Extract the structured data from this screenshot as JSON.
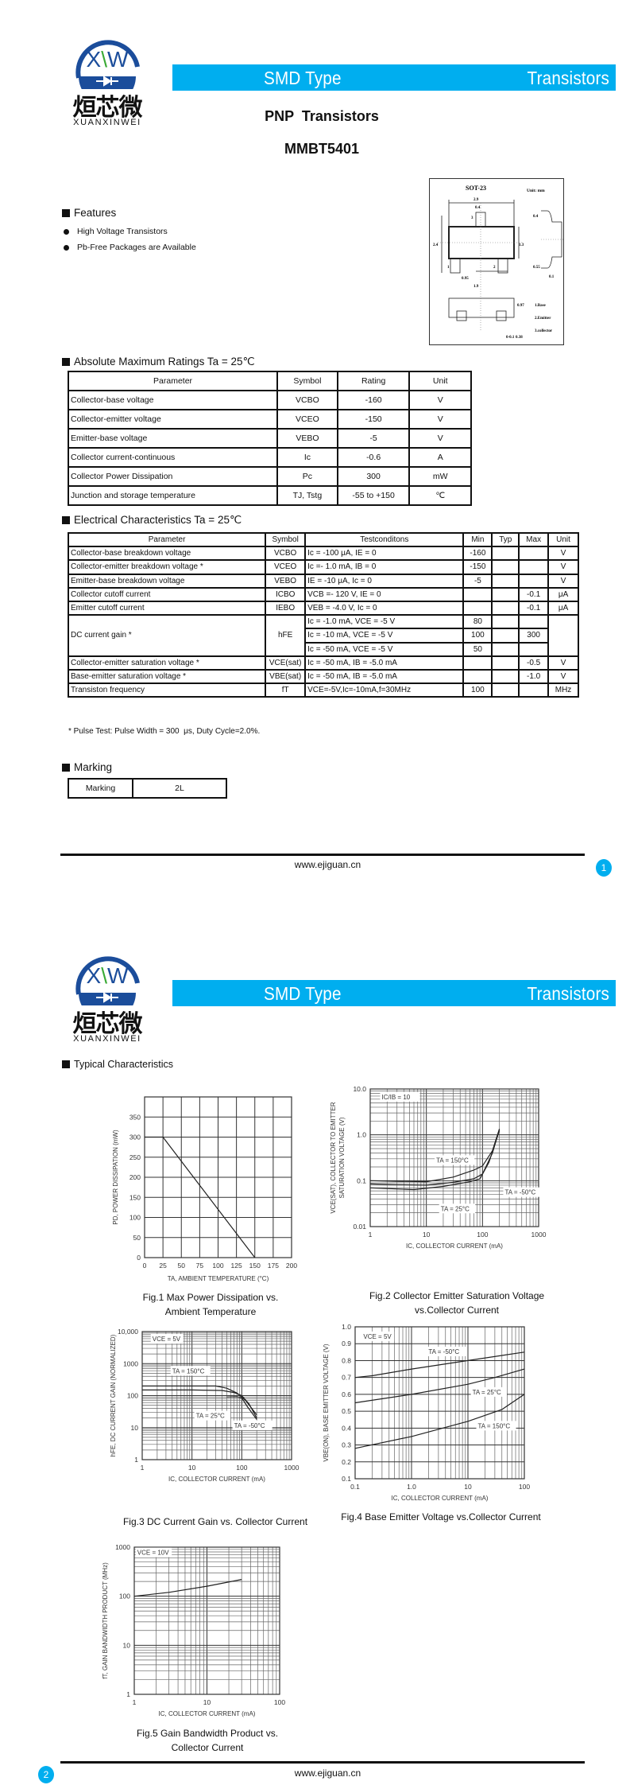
{
  "logo": {
    "mark": "XW",
    "cn": "烜芯微",
    "en": "XUANXINWEI"
  },
  "banner": {
    "left": "SMD Type",
    "right": "Transistors"
  },
  "colors": {
    "accent": "#00aeef",
    "text": "#111111"
  },
  "page1": {
    "title": "PNP  Transistors",
    "part": "MMBT5401",
    "features": {
      "heading": "Features",
      "items": [
        "High Voltage Transistors",
        "Pb-Free Packages are Available"
      ]
    },
    "package": {
      "name": "SOT-23",
      "unit": "Unit: mm",
      "dims": [
        "2.9",
        "0.4",
        "2.4",
        "1.3",
        "0.95",
        "1.9",
        "0.4",
        "0.55",
        "0.1",
        "0.97",
        "0-0.1",
        "0.38"
      ],
      "pins": [
        "1",
        "2",
        "3"
      ],
      "legend": [
        "1.Base",
        "2.Emitter",
        "3.collector"
      ]
    },
    "abs_max": {
      "heading": "Absolute Maximum Ratings Ta = 25℃",
      "columns": [
        "Parameter",
        "Symbol",
        "Rating",
        "Unit"
      ],
      "rows": [
        [
          "Collector-base voltage",
          "VCBO",
          "-160",
          "V"
        ],
        [
          "Collector-emitter voltage",
          "VCEO",
          "-150",
          "V"
        ],
        [
          "Emitter-base voltage",
          "VEBO",
          "-5",
          "V"
        ],
        [
          "Collector current-continuous",
          "Ic",
          "-0.6",
          "A"
        ],
        [
          "Collector Power Dissipation",
          "Pc",
          "300",
          "mW"
        ],
        [
          "Junction and storage temperature",
          "TJ, Tstg",
          "-55 to +150",
          "℃"
        ]
      ]
    },
    "elec": {
      "heading": "Electrical Characteristics Ta = 25℃",
      "columns": [
        "Parameter",
        "Symbol",
        "Testconditons",
        "Min",
        "Typ",
        "Max",
        "Unit"
      ],
      "rows": [
        {
          "param": "Collector-base breakdown voltage",
          "symbol": "VCBO",
          "cond": "Ic = -100  μA, IE = 0",
          "min": "-160",
          "typ": "",
          "max": "",
          "unit": "V"
        },
        {
          "param": "Collector-emitter breakdown voltage *",
          "symbol": "VCEO",
          "cond": "Ic =- 1.0 mA, IB = 0",
          "min": "-150",
          "typ": "",
          "max": "",
          "unit": "V"
        },
        {
          "param": "Emitter-base breakdown voltage",
          "symbol": "VEBO",
          "cond": "IE = -10  μA, Ic = 0",
          "min": "-5",
          "typ": "",
          "max": "",
          "unit": "V"
        },
        {
          "param": "Collector cutoff current",
          "symbol": "ICBO",
          "cond": "VCB =- 120 V, IE = 0",
          "min": "",
          "typ": "",
          "max": "-0.1",
          "unit": "μA"
        },
        {
          "param": "Emitter cutoff current",
          "symbol": "IEBO",
          "cond": "VEB = -4.0 V, Ic = 0",
          "min": "",
          "typ": "",
          "max": "-0.1",
          "unit": "μA"
        },
        {
          "param": "DC current gain *",
          "symbol": "hFE",
          "unit": "",
          "sub": [
            {
              "cond": "Ic = -1.0 mA, VCE = -5 V",
              "min": "80",
              "typ": "",
              "max": ""
            },
            {
              "cond": "Ic = -10 mA, VCE = -5 V",
              "min": "100",
              "typ": "",
              "max": "300"
            },
            {
              "cond": "Ic = -50 mA, VCE = -5 V",
              "min": "50",
              "typ": "",
              "max": ""
            }
          ]
        },
        {
          "param": "Collector-emitter saturation voltage *",
          "symbol": "VCE(sat)",
          "cond": "Ic = -50 mA, IB = -5.0 mA",
          "min": "",
          "typ": "",
          "max": "-0.5",
          "unit": "V"
        },
        {
          "param": "Base-emitter saturation voltage *",
          "symbol": "VBE(sat)",
          "cond": "Ic = -50 mA, IB = -5.0 mA",
          "min": "",
          "typ": "",
          "max": "-1.0",
          "unit": "V"
        },
        {
          "param": "Transiston frequency",
          "symbol": "fT",
          "cond": "VCE=-5V,Ic=-10mA,f=30MHz",
          "min": "100",
          "typ": "",
          "max": "",
          "unit": "MHz"
        }
      ]
    },
    "note": "* Pulse Test: Pulse Width = 300  μs, Duty Cycle=2.0%.",
    "marking": {
      "heading": "Marking",
      "label": "Marking",
      "value": "2L"
    },
    "footer": {
      "website": "www.ejiguan.cn",
      "page": "1"
    }
  },
  "page2": {
    "heading": "Typical Characteristics",
    "footer": {
      "website": "www.ejiguan.cn",
      "page": "2"
    }
  },
  "chart_data": [
    {
      "type": "line",
      "caption": [
        "Fig.1 Max Power Dissipation vs.",
        "Ambient Temperature"
      ],
      "xlabel": "TA, AMBIENT TEMPERATURE (°C)",
      "ylabel": [
        "PD, POWER DISSIPATION (mW)"
      ],
      "xscale": "linear",
      "yscale": "linear",
      "xlim": [
        0,
        200
      ],
      "ylim": [
        0,
        400
      ],
      "xgrid": 25,
      "ygrid": 50,
      "grid": true,
      "xticks": [
        "0",
        "25",
        "50",
        "75",
        "100",
        "125",
        "150",
        "175",
        "200"
      ],
      "yticks": [
        "0",
        "50",
        "100",
        "150",
        "200",
        "250",
        "300",
        "350"
      ],
      "series": [
        {
          "x": [
            0,
            25,
            150
          ],
          "y": [
            300,
            300,
            0
          ]
        }
      ],
      "annotations": []
    },
    {
      "type": "line",
      "caption": [
        "Fig.2 Collector Emitter Saturation Voltage",
        "vs.Collector Current"
      ],
      "xlabel": "IC, COLLECTOR CURRENT (mA)",
      "ylabel": [
        "VCE(SAT), COLLECTOR TO EMITTER",
        "SATURATION VOLTAGE (V)"
      ],
      "xscale": "log",
      "yscale": "log",
      "xlim": [
        1,
        1000
      ],
      "ylim": [
        0.01,
        10
      ],
      "grid": true,
      "xticks": [
        "1",
        "10",
        "100",
        "1000"
      ],
      "yticks": [
        "0.01",
        "0.1",
        "1.0",
        "10.0"
      ],
      "series": [
        {
          "name": "TA = 150°C",
          "x": [
            1,
            3,
            10,
            30,
            70,
            100,
            150,
            200
          ],
          "y": [
            0.1,
            0.097,
            0.095,
            0.12,
            0.17,
            0.21,
            0.45,
            1.35
          ]
        },
        {
          "name": "TA = 25°C",
          "x": [
            1,
            3,
            10,
            30,
            70,
            100,
            150,
            200
          ],
          "y": [
            0.085,
            0.082,
            0.08,
            0.092,
            0.11,
            0.14,
            0.4,
            1.3
          ]
        },
        {
          "name": "TA = -50°C",
          "x": [
            1,
            3,
            6,
            20,
            60,
            90,
            130,
            200
          ],
          "y": [
            0.07,
            0.066,
            0.064,
            0.075,
            0.095,
            0.11,
            0.25,
            1.25
          ]
        }
      ],
      "annotations": [
        {
          "text": "IC/IB = 10",
          "x": 1.6,
          "y": 6
        },
        {
          "text": "TA = 150°C",
          "x": 15,
          "y": 0.25
        },
        {
          "text": "TA = 25°C",
          "x": 18,
          "y": 0.022
        },
        {
          "text": "TA = -50°C",
          "x": 250,
          "y": 0.05
        }
      ]
    },
    {
      "type": "line",
      "caption": [
        "Fig.3 DC Current Gain vs. Collector Current"
      ],
      "xlabel": "IC, COLLECTOR CURRENT (mA)",
      "ylabel": [
        "hFE, DC CURRENT GAIN (NORMALIZED)"
      ],
      "xscale": "log",
      "yscale": "log",
      "xlim": [
        1,
        1000
      ],
      "ylim": [
        1,
        10000
      ],
      "grid": true,
      "xticks": [
        "1",
        "10",
        "100",
        "1000"
      ],
      "yticks": [
        "1",
        "10",
        "100",
        "1000",
        "10,000"
      ],
      "series": [
        {
          "name": "TA = 150°C",
          "x": [
            1,
            10,
            30,
            50,
            80,
            120,
            200
          ],
          "y": [
            200,
            200,
            200,
            170,
            120,
            70,
            25
          ]
        },
        {
          "name": "TA = 25°C",
          "x": [
            1,
            10,
            40,
            70,
            100,
            140,
            200
          ],
          "y": [
            150,
            150,
            145,
            125,
            100,
            55,
            20
          ]
        },
        {
          "name": "TA = -50°C",
          "x": [
            50,
            80,
            100,
            130,
            200
          ],
          "y": [
            90,
            92,
            85,
            45,
            18
          ]
        }
      ],
      "annotations": [
        {
          "text": "VCE = 5V",
          "x": 1.6,
          "y": 5000
        },
        {
          "text": "TA = 150°C",
          "x": 4,
          "y": 500
        },
        {
          "text": "TA = 25°C",
          "x": 12,
          "y": 20
        },
        {
          "text": "TA = -50°C",
          "x": 70,
          "y": 10
        }
      ]
    },
    {
      "type": "line",
      "caption": [
        "Fig.4 Base Emitter Voltage vs.Collector Current"
      ],
      "xlabel": "IC, COLLECTOR CURRENT (mA)",
      "ylabel": [
        "VBE(ON), BASE EMITTER VOLTAGE (V)"
      ],
      "xscale": "log",
      "yscale": "linear",
      "xlim": [
        0.1,
        100
      ],
      "ylim": [
        0.1,
        1.0
      ],
      "ygrid": 0.1,
      "grid": true,
      "xticks": [
        "0.1",
        "1.0",
        "10",
        "100"
      ],
      "yticks": [
        "0.1",
        "0.2",
        "0.3",
        "0.4",
        "0.5",
        "0.6",
        "0.7",
        "0.8",
        "0.9",
        "1.0"
      ],
      "series": [
        {
          "name": "TA = -50°C",
          "x": [
            0.1,
            0.2,
            1,
            10,
            100
          ],
          "y": [
            0.7,
            0.71,
            0.75,
            0.8,
            0.85
          ]
        },
        {
          "name": "TA = 25°C",
          "x": [
            0.1,
            1,
            10,
            30,
            100
          ],
          "y": [
            0.55,
            0.6,
            0.66,
            0.7,
            0.75
          ]
        },
        {
          "name": "TA = 150°C",
          "x": [
            0.1,
            1,
            10,
            40,
            100
          ],
          "y": [
            0.28,
            0.35,
            0.44,
            0.51,
            0.6
          ]
        }
      ],
      "annotations": [
        {
          "text": "VCE = 5V",
          "x": 0.14,
          "y": 0.93
        },
        {
          "text": "TA = -50°C",
          "x": 2,
          "y": 0.84
        },
        {
          "text": "TA = 25°C",
          "x": 12,
          "y": 0.6
        },
        {
          "text": "TA = 150°C",
          "x": 15,
          "y": 0.4
        }
      ]
    },
    {
      "type": "line",
      "caption": [
        "Fig.5 Gain Bandwidth Product vs.",
        "Collector Current"
      ],
      "xlabel": "IC, COLLECTOR CURRENT (mA)",
      "ylabel": [
        "fT, GAIN BANDWIDTH PRODUCT (MHz)"
      ],
      "xscale": "log",
      "yscale": "log",
      "xlim": [
        1,
        100
      ],
      "ylim": [
        1,
        1000
      ],
      "grid": true,
      "xticks": [
        "1",
        "10",
        "100"
      ],
      "yticks": [
        "1",
        "10",
        "100",
        "1000"
      ],
      "series": [
        {
          "x": [
            1,
            3,
            10,
            30
          ],
          "y": [
            100,
            120,
            160,
            220
          ]
        }
      ],
      "annotations": [
        {
          "text": "VCE = 10V",
          "x": 1.1,
          "y": 700
        }
      ]
    }
  ]
}
